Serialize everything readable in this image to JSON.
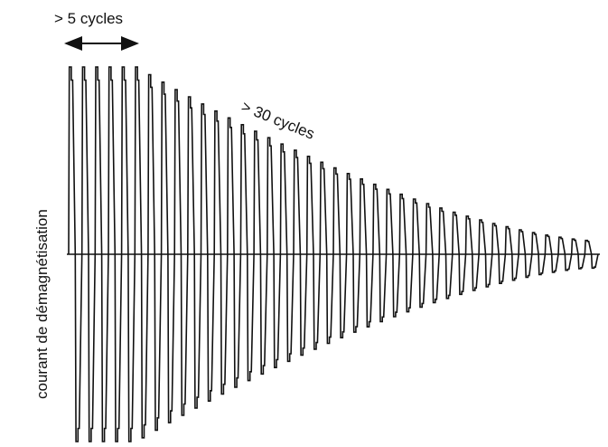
{
  "chart_data": {
    "type": "line",
    "title": "",
    "ylabel": "courant de démagnétisation",
    "xlabel": "",
    "axis": "horizontal zero axis only, no ticks",
    "grid": false,
    "legend": "none",
    "waveform": "decaying square-ish alternating wave",
    "cycles": 40,
    "steady_cycles": 5,
    "initial_amplitude": 1.0,
    "final_amplitude": 0.07,
    "ylim": [
      -1.05,
      1.05
    ],
    "annotations": [
      {
        "id": "steady",
        "text": "> 5 cycles"
      },
      {
        "id": "decay",
        "text": "> 30 cycles",
        "rotation_deg": 22
      }
    ],
    "line_color": "#111111",
    "axis_color": "#111111"
  }
}
